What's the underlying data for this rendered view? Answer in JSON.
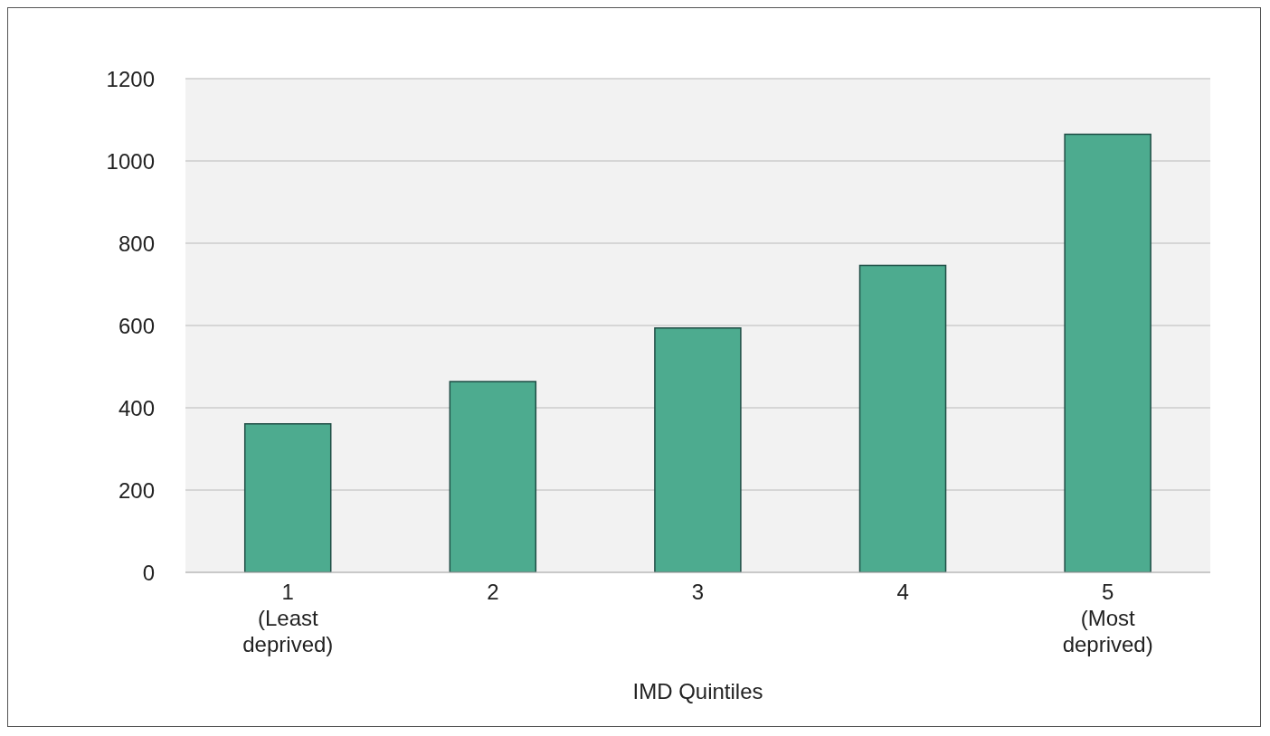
{
  "chart_data": {
    "type": "bar",
    "xlabel": "IMD Quintiles",
    "categories": [
      "1\n(Least\ndeprived)",
      "2",
      "3",
      "4",
      "5\n(Most\ndeprived)"
    ],
    "values": [
      361,
      464,
      594,
      746,
      1065
    ],
    "color": "#4dab8f",
    "ylim": [
      0,
      1200
    ],
    "yticks": [
      0,
      200,
      400,
      600,
      800,
      1000,
      1200
    ],
    "grid": "y"
  }
}
